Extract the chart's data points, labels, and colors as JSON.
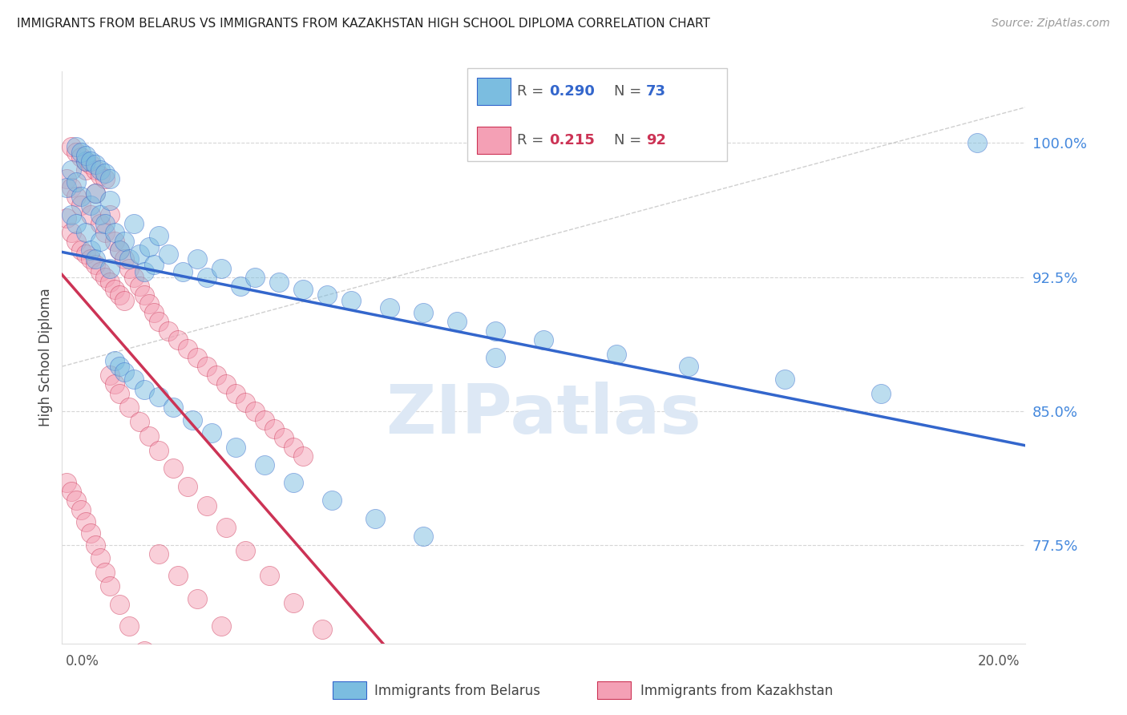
{
  "title": "IMMIGRANTS FROM BELARUS VS IMMIGRANTS FROM KAZAKHSTAN HIGH SCHOOL DIPLOMA CORRELATION CHART",
  "source": "Source: ZipAtlas.com",
  "ylabel": "High School Diploma",
  "y_ticks": [
    0.775,
    0.85,
    0.925,
    1.0
  ],
  "y_tick_labels": [
    "77.5%",
    "85.0%",
    "92.5%",
    "100.0%"
  ],
  "xlim": [
    0.0,
    0.2
  ],
  "ylim": [
    0.72,
    1.04
  ],
  "belarus_color": "#7bbde0",
  "kazakhstan_color": "#f4a0b5",
  "belarus_line_color": "#3366cc",
  "kazakhstan_line_color": "#cc3355",
  "watermark_text": "ZIPatlas",
  "watermark_color": "#dde8f5",
  "background_color": "#ffffff",
  "grid_color": "#cccccc",
  "title_color": "#222222",
  "source_color": "#999999",
  "yticklabel_color": "#4488dd",
  "belarus_scatter_x": [
    0.001,
    0.002,
    0.002,
    0.003,
    0.003,
    0.004,
    0.005,
    0.005,
    0.006,
    0.006,
    0.007,
    0.007,
    0.008,
    0.008,
    0.009,
    0.01,
    0.01,
    0.011,
    0.012,
    0.013,
    0.014,
    0.015,
    0.016,
    0.017,
    0.018,
    0.019,
    0.02,
    0.022,
    0.025,
    0.028,
    0.03,
    0.033,
    0.037,
    0.04,
    0.045,
    0.05,
    0.055,
    0.06,
    0.068,
    0.075,
    0.082,
    0.09,
    0.1,
    0.115,
    0.13,
    0.15,
    0.17,
    0.19,
    0.003,
    0.004,
    0.005,
    0.006,
    0.007,
    0.008,
    0.009,
    0.01,
    0.011,
    0.012,
    0.013,
    0.015,
    0.017,
    0.02,
    0.023,
    0.027,
    0.031,
    0.036,
    0.042,
    0.048,
    0.056,
    0.065,
    0.075,
    0.09
  ],
  "belarus_scatter_y": [
    0.975,
    0.985,
    0.96,
    0.978,
    0.955,
    0.97,
    0.99,
    0.95,
    0.965,
    0.94,
    0.972,
    0.935,
    0.96,
    0.945,
    0.955,
    0.968,
    0.93,
    0.95,
    0.94,
    0.945,
    0.935,
    0.955,
    0.938,
    0.928,
    0.942,
    0.932,
    0.948,
    0.938,
    0.928,
    0.935,
    0.925,
    0.93,
    0.92,
    0.925,
    0.922,
    0.918,
    0.915,
    0.912,
    0.908,
    0.905,
    0.9,
    0.895,
    0.89,
    0.882,
    0.875,
    0.868,
    0.86,
    1.0,
    0.998,
    0.995,
    0.993,
    0.99,
    0.988,
    0.985,
    0.983,
    0.98,
    0.878,
    0.875,
    0.872,
    0.868,
    0.862,
    0.858,
    0.852,
    0.845,
    0.838,
    0.83,
    0.82,
    0.81,
    0.8,
    0.79,
    0.78,
    0.88
  ],
  "kazakhstan_scatter_x": [
    0.001,
    0.001,
    0.002,
    0.002,
    0.003,
    0.003,
    0.004,
    0.004,
    0.005,
    0.005,
    0.006,
    0.006,
    0.007,
    0.007,
    0.008,
    0.008,
    0.009,
    0.009,
    0.01,
    0.01,
    0.011,
    0.011,
    0.012,
    0.012,
    0.013,
    0.013,
    0.014,
    0.015,
    0.016,
    0.017,
    0.018,
    0.019,
    0.02,
    0.022,
    0.024,
    0.026,
    0.028,
    0.03,
    0.032,
    0.034,
    0.036,
    0.038,
    0.04,
    0.042,
    0.044,
    0.046,
    0.048,
    0.05,
    0.002,
    0.003,
    0.004,
    0.005,
    0.006,
    0.007,
    0.008,
    0.009,
    0.01,
    0.011,
    0.012,
    0.014,
    0.016,
    0.018,
    0.02,
    0.023,
    0.026,
    0.03,
    0.034,
    0.038,
    0.043,
    0.048,
    0.054,
    0.001,
    0.002,
    0.003,
    0.004,
    0.005,
    0.006,
    0.007,
    0.008,
    0.009,
    0.01,
    0.012,
    0.014,
    0.017,
    0.02,
    0.024,
    0.028,
    0.033,
    0.038
  ],
  "kazakhstan_scatter_y": [
    0.98,
    0.958,
    0.975,
    0.95,
    0.97,
    0.945,
    0.965,
    0.94,
    0.985,
    0.938,
    0.96,
    0.935,
    0.972,
    0.932,
    0.955,
    0.928,
    0.95,
    0.925,
    0.96,
    0.922,
    0.945,
    0.918,
    0.94,
    0.915,
    0.935,
    0.912,
    0.93,
    0.925,
    0.92,
    0.915,
    0.91,
    0.905,
    0.9,
    0.895,
    0.89,
    0.885,
    0.88,
    0.875,
    0.87,
    0.865,
    0.86,
    0.855,
    0.85,
    0.845,
    0.84,
    0.835,
    0.83,
    0.825,
    0.998,
    0.995,
    0.992,
    0.99,
    0.988,
    0.985,
    0.982,
    0.98,
    0.87,
    0.865,
    0.86,
    0.852,
    0.844,
    0.836,
    0.828,
    0.818,
    0.808,
    0.797,
    0.785,
    0.772,
    0.758,
    0.743,
    0.728,
    0.81,
    0.805,
    0.8,
    0.795,
    0.788,
    0.782,
    0.775,
    0.768,
    0.76,
    0.752,
    0.742,
    0.73,
    0.716,
    0.77,
    0.758,
    0.745,
    0.73,
    0.714
  ]
}
